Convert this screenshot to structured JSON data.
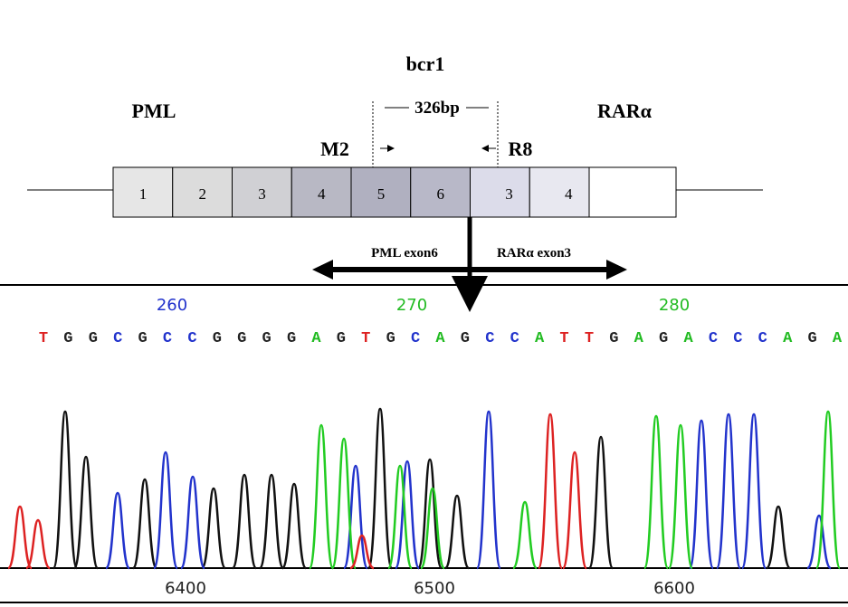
{
  "diagram": {
    "title": "bcr1",
    "left_gene": "PML",
    "right_gene": "RARα",
    "product_size": "326bp",
    "forward_primer": "M2",
    "reverse_primer": "R8",
    "exons": [
      "1",
      "2",
      "3",
      "4",
      "5",
      "6",
      "3",
      "4"
    ],
    "left_exon_label": "PML exon6",
    "right_exon_label": "RARα exon3"
  },
  "trace": {
    "base_positions": [
      {
        "label": "260",
        "color": "#2233cc"
      },
      {
        "label": "270",
        "color": "#22bb22"
      },
      {
        "label": "280",
        "color": "#22bb22"
      }
    ],
    "sequence": [
      "T",
      "G",
      "G",
      "C",
      "G",
      "C",
      "C",
      "G",
      "G",
      "G",
      "G",
      "A",
      "G",
      "T",
      "G",
      "C",
      "A",
      "G",
      "C",
      "C",
      "A",
      "T",
      "T",
      "G",
      "A",
      "G",
      "A",
      "C",
      "C",
      "C",
      "A",
      "G",
      "A"
    ],
    "base_colors": {
      "A": "#22bb22",
      "C": "#2233cc",
      "G": "#222222",
      "T": "#dd2222"
    },
    "scan_positions": [
      "6400",
      "6500",
      "6600"
    ]
  }
}
